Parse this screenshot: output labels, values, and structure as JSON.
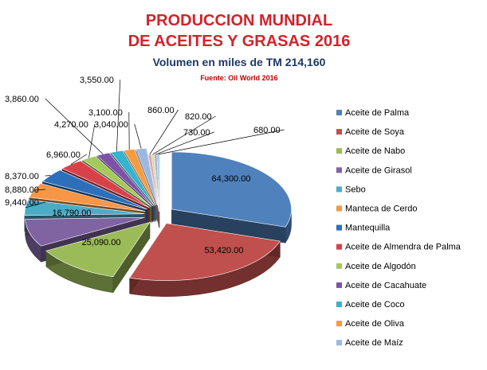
{
  "chart_data": {
    "type": "pie",
    "title_line1": "PRODUCCION MUNDIAL",
    "title_line2": "DE ACEITES Y GRASAS 2016",
    "subtitle": "Volumen en miles de TM 214,160",
    "source": "Fuente: Oil World 2016",
    "legend_position": "right",
    "slices": [
      {
        "name": "Aceite de Palma",
        "value": 64300,
        "label": "64,300.00",
        "color": "#4f81bd"
      },
      {
        "name": "Aceite de Soya",
        "value": 53420,
        "label": "53,420.00",
        "color": "#c0504d"
      },
      {
        "name": "Aceite de Nabo",
        "value": 25090,
        "label": "25,090.00",
        "color": "#9bbb59"
      },
      {
        "name": "Aceite de Girasol",
        "value": 16790,
        "label": "16,790.00",
        "color": "#8064a2"
      },
      {
        "name": "Sebo",
        "value": 9440,
        "label": "9,440.00",
        "color": "#4bacc6"
      },
      {
        "name": "Manteca de Cerdo",
        "value": 8880,
        "label": "8,880.00",
        "color": "#f79646"
      },
      {
        "name": "Mantequilla",
        "value": 8370,
        "label": "8,370.00",
        "color": "#2c6fbb"
      },
      {
        "name": "Aceite de Almendra de Palma",
        "value": 6960,
        "label": "6,960.00",
        "color": "#d8414a"
      },
      {
        "name": "Aceite de Algodón",
        "value": 4270,
        "label": "4,270.00",
        "color": "#a5c95a"
      },
      {
        "name": "Aceite de Cacahuate",
        "value": 3860,
        "label": "3,860.00",
        "color": "#7d52a8"
      },
      {
        "name": "Aceite de Coco",
        "value": 3550,
        "label": "3,550.00",
        "color": "#35b3cf"
      },
      {
        "name": "Aceite de Oliva",
        "value": 3100,
        "label": "3,100.00",
        "color": "#f79b3f"
      },
      {
        "name": "Aceite de Maíz",
        "value": 3040,
        "label": "3,040.00",
        "color": "#9db8e0"
      },
      {
        "name": "",
        "value": 860,
        "label": "860.00",
        "color": "#e3a3a0"
      },
      {
        "name": "",
        "value": 820,
        "label": "820.00",
        "color": "#cfe0a8"
      },
      {
        "name": "",
        "value": 730,
        "label": "730.00",
        "color": "#b9a6d3"
      },
      {
        "name": "",
        "value": 680,
        "label": "680.00",
        "color": "#8fd3e3"
      }
    ]
  }
}
